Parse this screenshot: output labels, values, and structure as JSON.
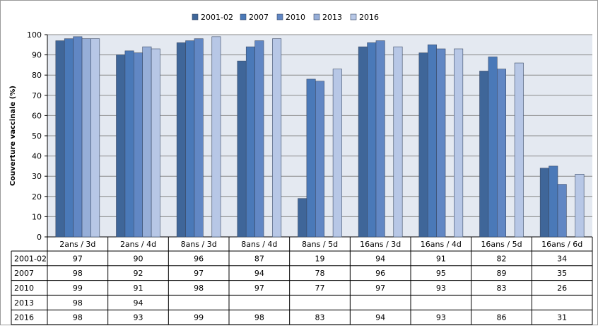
{
  "chart_data": {
    "type": "bar",
    "ylabel": "Couverture vaccinale (%)",
    "ylim": [
      0,
      100
    ],
    "yticks": [
      0,
      10,
      20,
      30,
      40,
      50,
      60,
      70,
      80,
      90,
      100
    ],
    "grid": true,
    "legend_position": "top",
    "categories": [
      "2ans / 3d",
      "2ans / 4d",
      "8ans / 3d",
      "8ans / 4d",
      "8ans / 5d",
      "16ans / 3d",
      "16ans / 4d",
      "16ans / 5d",
      "16ans / 6d"
    ],
    "series": [
      {
        "name": "2001-02",
        "color": "#3f6699",
        "values": [
          97,
          90,
          96,
          87,
          19,
          94,
          91,
          82,
          34
        ]
      },
      {
        "name": "2007",
        "color": "#4a79b8",
        "values": [
          98,
          92,
          97,
          94,
          78,
          96,
          95,
          89,
          35
        ]
      },
      {
        "name": "2010",
        "color": "#6187c4",
        "values": [
          99,
          91,
          98,
          97,
          77,
          97,
          93,
          83,
          26
        ]
      },
      {
        "name": "2013",
        "color": "#96aed8",
        "values": [
          98,
          94,
          null,
          null,
          null,
          null,
          null,
          null,
          null
        ]
      },
      {
        "name": "2016",
        "color": "#b7c7e6",
        "values": [
          98,
          93,
          99,
          98,
          83,
          94,
          93,
          86,
          31
        ]
      }
    ]
  },
  "style": {
    "plot_bg": "#e4e9f1",
    "grid_color": "#8a8a8a",
    "bar_edge": "#3a4a66"
  }
}
